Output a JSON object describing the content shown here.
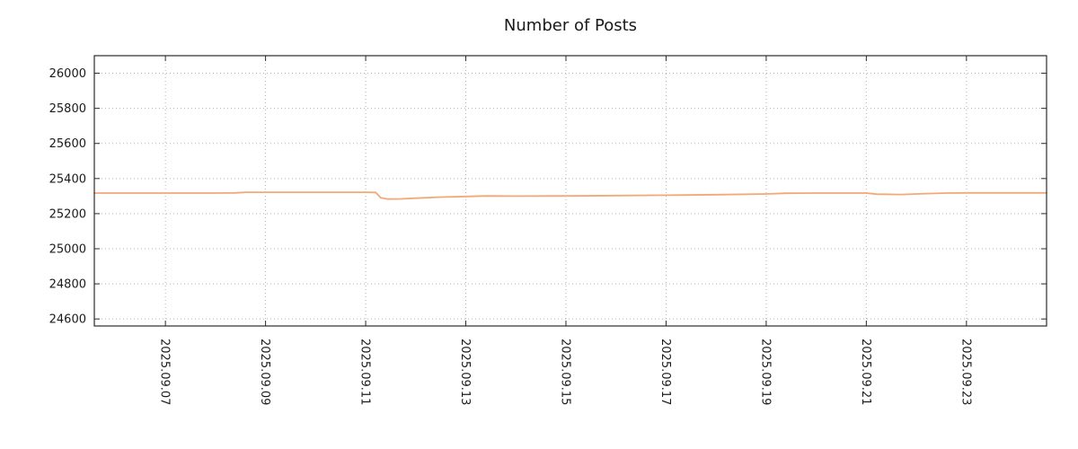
{
  "chart_data": {
    "type": "line",
    "title": "Number of Posts",
    "xlabel": "",
    "ylabel": "",
    "grid": true,
    "legend_position": "none",
    "line_color": "#f4a878",
    "x_unit": "days since 2025-09-01 00:00",
    "xlim": [
      5.58,
      24.6
    ],
    "ylim": [
      24560,
      26100
    ],
    "y_ticks": [
      24600,
      24800,
      25000,
      25200,
      25400,
      25600,
      25800,
      26000
    ],
    "x_ticks": [
      {
        "pos": 7,
        "label": "2025.09.07"
      },
      {
        "pos": 9,
        "label": "2025.09.09"
      },
      {
        "pos": 11,
        "label": "2025.09.11"
      },
      {
        "pos": 13,
        "label": "2025.09.13"
      },
      {
        "pos": 15,
        "label": "2025.09.15"
      },
      {
        "pos": 17,
        "label": "2025.09.17"
      },
      {
        "pos": 19,
        "label": "2025.09.19"
      },
      {
        "pos": 21,
        "label": "2025.09.21"
      },
      {
        "pos": 23,
        "label": "2025.09.23"
      }
    ],
    "series": [
      {
        "points": [
          [
            5.58,
            25317
          ],
          [
            7,
            25317
          ],
          [
            8,
            25317
          ],
          [
            8.4,
            25318
          ],
          [
            8.6,
            25322
          ],
          [
            9,
            25322
          ],
          [
            10,
            25322
          ],
          [
            11.0,
            25322
          ],
          [
            11.2,
            25321
          ],
          [
            11.3,
            25290
          ],
          [
            11.45,
            25283
          ],
          [
            11.7,
            25284
          ],
          [
            12,
            25288
          ],
          [
            12.5,
            25294
          ],
          [
            13,
            25298
          ],
          [
            13.4,
            25301
          ],
          [
            14,
            25300
          ],
          [
            15,
            25301
          ],
          [
            16,
            25303
          ],
          [
            17,
            25305
          ],
          [
            18,
            25308
          ],
          [
            19,
            25312
          ],
          [
            19.4,
            25316
          ],
          [
            20,
            25317
          ],
          [
            21,
            25317
          ],
          [
            21.2,
            25311
          ],
          [
            21.7,
            25309
          ],
          [
            22.2,
            25314
          ],
          [
            22.6,
            25317
          ],
          [
            23,
            25318
          ],
          [
            24.6,
            25318
          ]
        ]
      }
    ]
  }
}
